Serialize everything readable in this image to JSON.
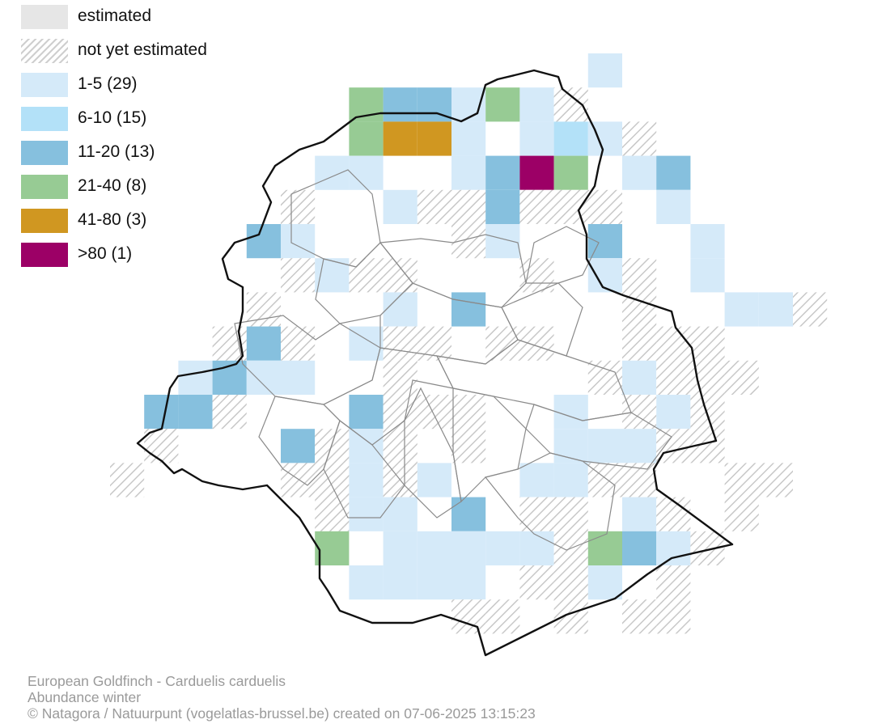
{
  "legend": {
    "items": [
      {
        "label": "estimated",
        "color": "#e6e6e6",
        "pattern": "solid"
      },
      {
        "label": "not yet estimated",
        "color": "#d0d0d0",
        "pattern": "hatch"
      },
      {
        "label": "1-5 (29)",
        "color": "#d5eaf9",
        "pattern": "solid"
      },
      {
        "label": "6-10 (15)",
        "color": "#b3e1f8",
        "pattern": "solid"
      },
      {
        "label": "11-20 (13)",
        "color": "#86c0de",
        "pattern": "solid"
      },
      {
        "label": "21-40 (8)",
        "color": "#97cb94",
        "pattern": "solid"
      },
      {
        "label": "41-80 (3)",
        "color": "#d09721",
        "pattern": "solid"
      },
      {
        "label": ">80 (1)",
        "color": "#9c0066",
        "pattern": "solid"
      }
    ]
  },
  "grid": {
    "cell_color_by_class": {
      "estimated": "#ffffff",
      "hatch": "hatch",
      "1": "#d5eaf9",
      "2": "#b3e1f8",
      "3": "#86c0de",
      "4": "#97cb94",
      "5": "#d09721",
      "6": "#9c0066"
    },
    "rows": [
      "..............l.....",
      ".......gmhlgl/......",
      ".......g55l.lvl/....",
      "......ll..lmog.lm...",
      "...../..l//m///.l...",
      "....ml..../l..m..l..",
      "...../l//.../.l/.l..",
      "..../...l.m..../..ll/",
      ".../m/.l//.//..///..",
      "..lmll../...../l///.",
      ".mm/...m///..l./l/..",
      "./...m/l/./..lll//..",
      "/....//l/l..ll//..//",
      "....../ll.m.//.l/./.",
      "......g.lllll/gml/..",
      ".......llll.//l./...",
      "..........//././/..."
    ]
  },
  "credits": {
    "species": "European Goldfinch - Carduelis carduelis",
    "map_type": "Abundance winter",
    "source": "© Natagora / Natuurpunt (vogelatlas-brussel.be) created on 07-06-2025 13:15:23"
  }
}
